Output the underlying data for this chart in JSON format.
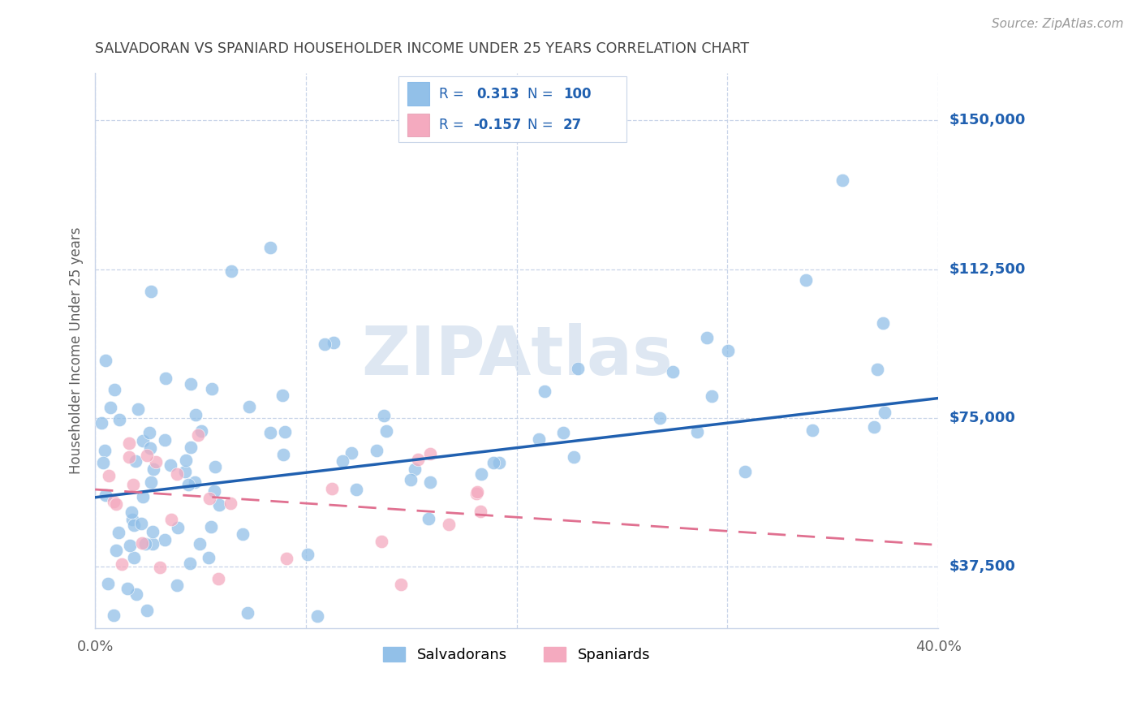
{
  "title": "SALVADORAN VS SPANIARD HOUSEHOLDER INCOME UNDER 25 YEARS CORRELATION CHART",
  "source": "Source: ZipAtlas.com",
  "ylabel": "Householder Income Under 25 years",
  "xlim": [
    0.0,
    0.4
  ],
  "ylim": [
    22000,
    162000
  ],
  "yticks": [
    37500,
    75000,
    112500,
    150000
  ],
  "ytick_labels": [
    "$37,500",
    "$75,000",
    "$112,500",
    "$150,000"
  ],
  "xticks": [
    0.0,
    0.1,
    0.2,
    0.3,
    0.4
  ],
  "xtick_labels": [
    "0.0%",
    "",
    "",
    "",
    "40.0%"
  ],
  "salvadoran_R": 0.313,
  "salvadoran_N": 100,
  "spaniard_R": -0.157,
  "spaniard_N": 27,
  "blue_color": "#92C0E8",
  "pink_color": "#F4AABF",
  "blue_line_color": "#2060B0",
  "pink_line_color": "#E07090",
  "watermark": "ZIPAtlas",
  "watermark_color": "#C8D8EA",
  "background_color": "#ffffff",
  "grid_color": "#C8D4E8",
  "title_color": "#444444",
  "label_color": "#2060B0",
  "source_color": "#999999",
  "legend_text_color": "#2060B0",
  "blue_trend_y0": 55000,
  "blue_trend_y1": 80000,
  "pink_trend_y0": 57000,
  "pink_trend_y1": 43000
}
